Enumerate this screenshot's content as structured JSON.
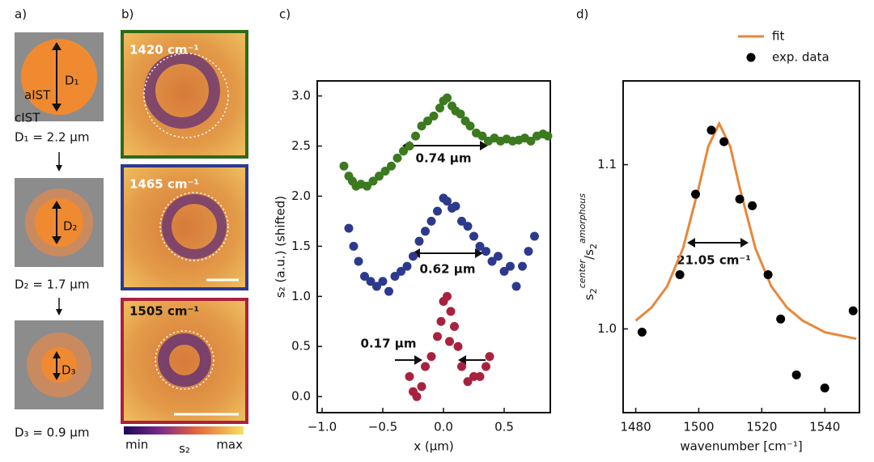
{
  "panel_a": {
    "label": "a)",
    "inner_label": "aIST",
    "outer_label": "cIST",
    "items": [
      {
        "symbol": "D₁",
        "caption": "D₁ = 2.2 µm"
      },
      {
        "symbol": "D₂",
        "caption": "D₂ = 1.7 µm"
      },
      {
        "symbol": "D₃",
        "caption": "D₃ = 0.9 µm"
      }
    ]
  },
  "panel_b": {
    "label": "b)",
    "images": [
      "1420 cm⁻¹",
      "1465 cm⁻¹",
      "1505 cm⁻¹"
    ],
    "colorbar": {
      "min": "min",
      "label": "s₂",
      "max": "max"
    }
  },
  "chart_data": [
    {
      "type": "scatter",
      "panel_label": "c)",
      "x_label": "x (µm)",
      "y_label": "s₂ (a.u.) (shifted)",
      "xlim": [
        -1.04,
        0.88
      ],
      "ylim": [
        -0.16,
        3.15
      ],
      "xticks": [
        {
          "value": -1.0,
          "label": "−1.0"
        },
        {
          "value": -0.5,
          "label": "−0.5"
        },
        {
          "value": 0.0,
          "label": "0.0"
        },
        {
          "value": 0.5,
          "label": "0.5"
        }
      ],
      "yticks": [
        {
          "value": 0.0,
          "label": "0.0"
        },
        {
          "value": 0.5,
          "label": "0.5"
        },
        {
          "value": 1.0,
          "label": "1.0"
        },
        {
          "value": 1.5,
          "label": "1.5"
        },
        {
          "value": 2.0,
          "label": "2.0"
        },
        {
          "value": 2.5,
          "label": "2.5"
        },
        {
          "value": 3.0,
          "label": "3.0"
        }
      ],
      "annotations": [
        "0.74 µm",
        "0.62 µm",
        "0.17 µm"
      ],
      "series": [
        {
          "color": "#3b7a1f",
          "mark": "dot",
          "x": [
            -0.82,
            -0.78,
            -0.75,
            -0.72,
            -0.68,
            -0.63,
            -0.58,
            -0.53,
            -0.48,
            -0.43,
            -0.38,
            -0.33,
            -0.28,
            -0.23,
            -0.18,
            -0.13,
            -0.08,
            -0.03,
            0.0,
            0.03,
            0.07,
            0.1,
            0.14,
            0.18,
            0.22,
            0.27,
            0.32,
            0.37,
            0.42,
            0.47,
            0.52,
            0.57,
            0.62,
            0.67,
            0.72,
            0.77,
            0.82,
            0.86
          ],
          "values": [
            2.3,
            2.2,
            2.15,
            2.1,
            2.12,
            2.1,
            2.15,
            2.2,
            2.25,
            2.3,
            2.38,
            2.45,
            2.5,
            2.6,
            2.7,
            2.75,
            2.8,
            2.88,
            2.95,
            2.98,
            2.9,
            2.85,
            2.82,
            2.75,
            2.7,
            2.63,
            2.6,
            2.55,
            2.58,
            2.55,
            2.57,
            2.55,
            2.56,
            2.58,
            2.55,
            2.6,
            2.62,
            2.6
          ]
        },
        {
          "color": "#2d3a8c",
          "mark": "dot",
          "x": [
            -0.78,
            -0.74,
            -0.7,
            -0.65,
            -0.6,
            -0.55,
            -0.5,
            -0.45,
            -0.4,
            -0.35,
            -0.3,
            -0.25,
            -0.2,
            -0.15,
            -0.1,
            -0.05,
            0.0,
            0.03,
            0.07,
            0.1,
            0.15,
            0.2,
            0.25,
            0.3,
            0.35,
            0.4,
            0.45,
            0.5,
            0.55,
            0.6,
            0.65,
            0.7,
            0.75
          ],
          "values": [
            1.68,
            1.5,
            1.35,
            1.2,
            1.15,
            1.1,
            1.15,
            1.05,
            1.2,
            1.25,
            1.3,
            1.4,
            1.55,
            1.65,
            1.75,
            1.85,
            1.98,
            1.95,
            1.88,
            1.9,
            1.75,
            1.7,
            1.6,
            1.5,
            1.45,
            1.35,
            1.4,
            1.25,
            1.3,
            1.1,
            1.3,
            1.45,
            1.6
          ]
        },
        {
          "color": "#a8223e",
          "mark": "dot",
          "x": [
            -0.28,
            -0.25,
            -0.22,
            -0.18,
            -0.15,
            -0.1,
            -0.05,
            -0.02,
            0.0,
            0.03,
            0.05,
            0.06,
            0.09,
            0.12,
            0.15,
            0.2,
            0.25,
            0.3,
            0.35,
            0.38
          ],
          "values": [
            0.2,
            0.05,
            0.0,
            0.1,
            0.3,
            0.4,
            0.6,
            0.75,
            0.95,
            1.0,
            0.55,
            0.85,
            0.7,
            0.5,
            0.3,
            0.15,
            0.2,
            0.2,
            0.3,
            0.4
          ]
        }
      ]
    },
    {
      "type": "scatter",
      "panel_label": "d)",
      "x_label": "wavenumber [cm⁻¹]",
      "y_label": [
        "s",
        "2",
        "center",
        "/s",
        "2",
        "amorphous"
      ],
      "xlim": [
        1476,
        1551
      ],
      "ylim": [
        0.949,
        1.151
      ],
      "xticks": [
        1480,
        1500,
        1520,
        1540
      ],
      "yticks": [
        {
          "value": 1.0,
          "label": "1.0"
        },
        {
          "value": 1.1,
          "label": "1.1"
        }
      ],
      "annotations": [
        "21.05 cm⁻¹"
      ],
      "legend": "upper right",
      "series": [
        {
          "name": "fit",
          "color": "#e8873a",
          "mark": "line",
          "x": [
            1480,
            1485,
            1490,
            1495,
            1500,
            1503,
            1506.5,
            1510,
            1513,
            1518,
            1523,
            1528,
            1533,
            1540,
            1550
          ],
          "values": [
            1.005,
            1.013,
            1.026,
            1.049,
            1.086,
            1.111,
            1.125,
            1.111,
            1.086,
            1.049,
            1.026,
            1.013,
            1.005,
            0.998,
            0.994
          ]
        },
        {
          "name": "exp. data",
          "color": "#000000",
          "mark": "dot",
          "x": [
            1482,
            1494,
            1499,
            1504,
            1508,
            1513,
            1517,
            1522,
            1526,
            1531,
            1540,
            1549
          ],
          "values": [
            0.998,
            1.033,
            1.082,
            1.121,
            1.114,
            1.079,
            1.075,
            1.033,
            1.006,
            0.972,
            0.964,
            1.011
          ]
        }
      ]
    }
  ]
}
